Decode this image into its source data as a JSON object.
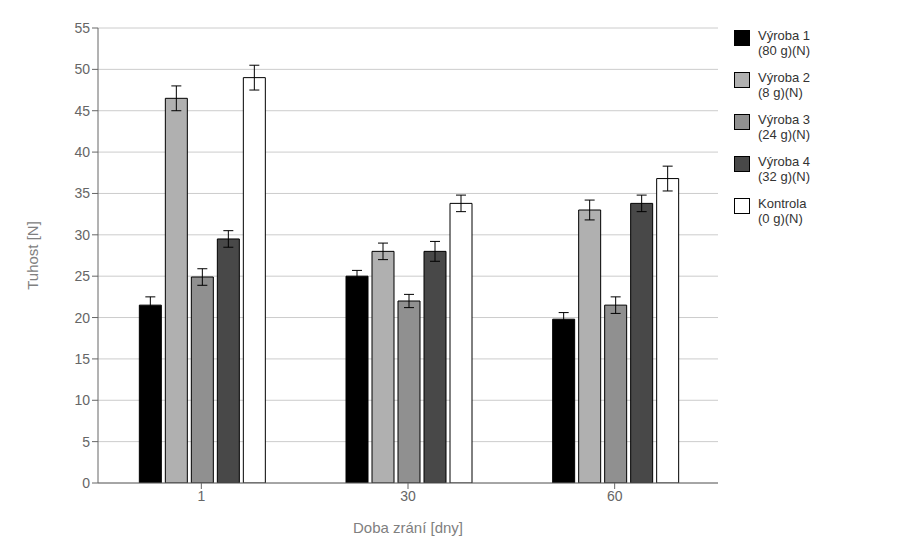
{
  "chart_data": {
    "type": "bar",
    "categories": [
      "1",
      "30",
      "60"
    ],
    "series": [
      {
        "name": "Výroba 1\n(80 g)(N)",
        "color": "#000000",
        "values": [
          21.5,
          25.0,
          19.8
        ],
        "errors": [
          1.0,
          0.7,
          0.8
        ]
      },
      {
        "name": "Výroba 2\n(8 g)(N)",
        "color": "#b0b0b0",
        "values": [
          46.5,
          28.0,
          33.0
        ],
        "errors": [
          1.5,
          1.0,
          1.2
        ]
      },
      {
        "name": "Výroba 3\n(24 g)(N)",
        "color": "#909090",
        "values": [
          24.9,
          22.0,
          21.5
        ],
        "errors": [
          1.0,
          0.8,
          1.0
        ]
      },
      {
        "name": "Výroba 4\n(32 g)(N)",
        "color": "#484848",
        "values": [
          29.5,
          28.0,
          33.8
        ],
        "errors": [
          1.0,
          1.2,
          1.0
        ]
      },
      {
        "name": "Kontrola\n(0 g)(N)",
        "color": "#ffffff",
        "values": [
          49.0,
          33.8,
          36.8
        ],
        "errors": [
          1.5,
          1.0,
          1.5
        ]
      }
    ],
    "xlabel": "Doba zrání [dny]",
    "ylabel": "Tuhost [N]",
    "ylim": [
      0,
      55
    ],
    "yticks": [
      0,
      5,
      10,
      15,
      20,
      25,
      30,
      35,
      40,
      45,
      50,
      55
    ],
    "grid": true,
    "legend": "right"
  }
}
